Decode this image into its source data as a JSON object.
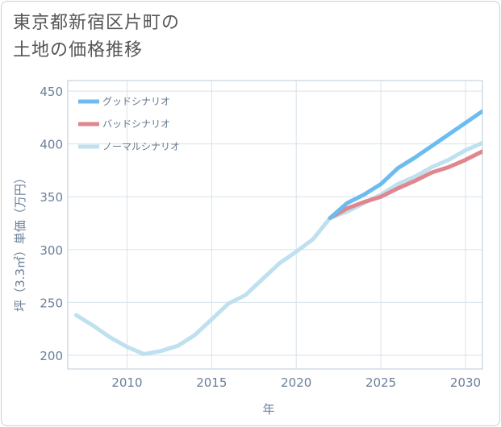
{
  "title_lines": [
    "東京都新宿区片町の",
    "土地の価格推移"
  ],
  "chart_data": {
    "type": "line",
    "title": "東京都新宿区片町の土地の価格推移",
    "xlabel": "年",
    "ylabel": "坪（3.3㎡）単価（万円）",
    "xlim": [
      2006.5,
      2031
    ],
    "ylim": [
      187,
      460
    ],
    "xticks": [
      2010,
      2015,
      2020,
      2025,
      2030
    ],
    "yticks": [
      200,
      250,
      300,
      350,
      400,
      450
    ],
    "grid": true,
    "legend_position": "top-left",
    "series": [
      {
        "name": "グッドシナリオ",
        "color": "#6cbcf0",
        "x": [
          2022,
          2023,
          2024,
          2025,
          2026,
          2027,
          2028,
          2029,
          2030,
          2031
        ],
        "y": [
          330,
          344,
          352,
          362,
          377,
          387,
          398,
          409,
          420,
          431
        ]
      },
      {
        "name": "バッドシナリオ",
        "color": "#e0868f",
        "x": [
          2022,
          2023,
          2024,
          2025,
          2026,
          2027,
          2028,
          2029,
          2030,
          2031
        ],
        "y": [
          330,
          339,
          345,
          350,
          358,
          365,
          373,
          378,
          385,
          393
        ]
      },
      {
        "name": "ノーマルシナリオ",
        "color": "#bfe0ee",
        "x": [
          2007,
          2008,
          2009,
          2010,
          2011,
          2012,
          2013,
          2014,
          2015,
          2016,
          2017,
          2018,
          2019,
          2020,
          2021,
          2022,
          2023,
          2024,
          2025,
          2026,
          2027,
          2028,
          2029,
          2030,
          2031
        ],
        "y": [
          238,
          228,
          217,
          208,
          201,
          204,
          209,
          219,
          234,
          249,
          257,
          272,
          287,
          298,
          310,
          330,
          336,
          344,
          352,
          362,
          369,
          378,
          385,
          394,
          401
        ]
      }
    ]
  }
}
